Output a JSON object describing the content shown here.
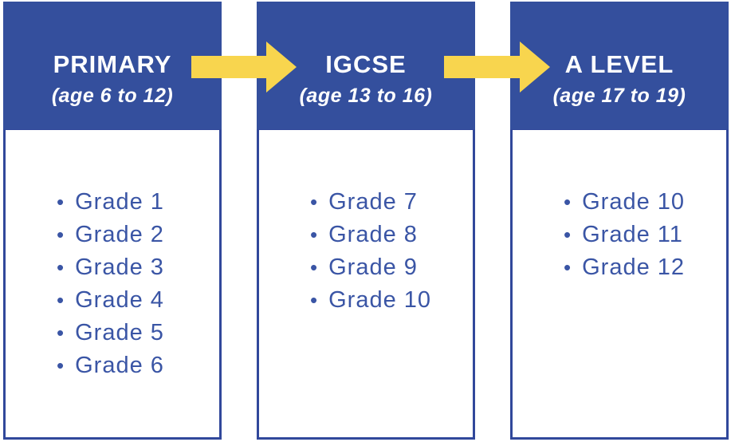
{
  "diagram": {
    "name": "Education pathway diagram",
    "columns": [
      {
        "id": "primary",
        "title": "PRIMARY",
        "subtitle": "(age 6 to 12)",
        "grades": [
          "Grade 1",
          "Grade 2",
          "Grade 3",
          "Grade 4",
          "Grade 5",
          "Grade 6"
        ]
      },
      {
        "id": "igcse",
        "title": "IGCSE",
        "subtitle": "(age 13 to 16)",
        "grades": [
          "Grade 7",
          "Grade 8",
          "Grade 9",
          "Grade 10"
        ]
      },
      {
        "id": "alevel",
        "title": "A LEVEL",
        "subtitle": "(age 17 to 19)",
        "grades": [
          "Grade 10",
          "Grade 11",
          "Grade 12"
        ]
      }
    ],
    "arrows": [
      {
        "from": "PRIMARY",
        "to": "IGCSE",
        "icon": "right-arrow-icon"
      },
      {
        "from": "IGCSE",
        "to": "A LEVEL",
        "icon": "right-arrow-icon"
      }
    ],
    "colors": {
      "header_blue": "#344F9D",
      "border_blue": "#31489B",
      "text_blue": "#3A55A5",
      "arrow_yellow": "#F8D54E",
      "title_white": "#FFFFFF",
      "background": "#FFFFFF"
    }
  }
}
